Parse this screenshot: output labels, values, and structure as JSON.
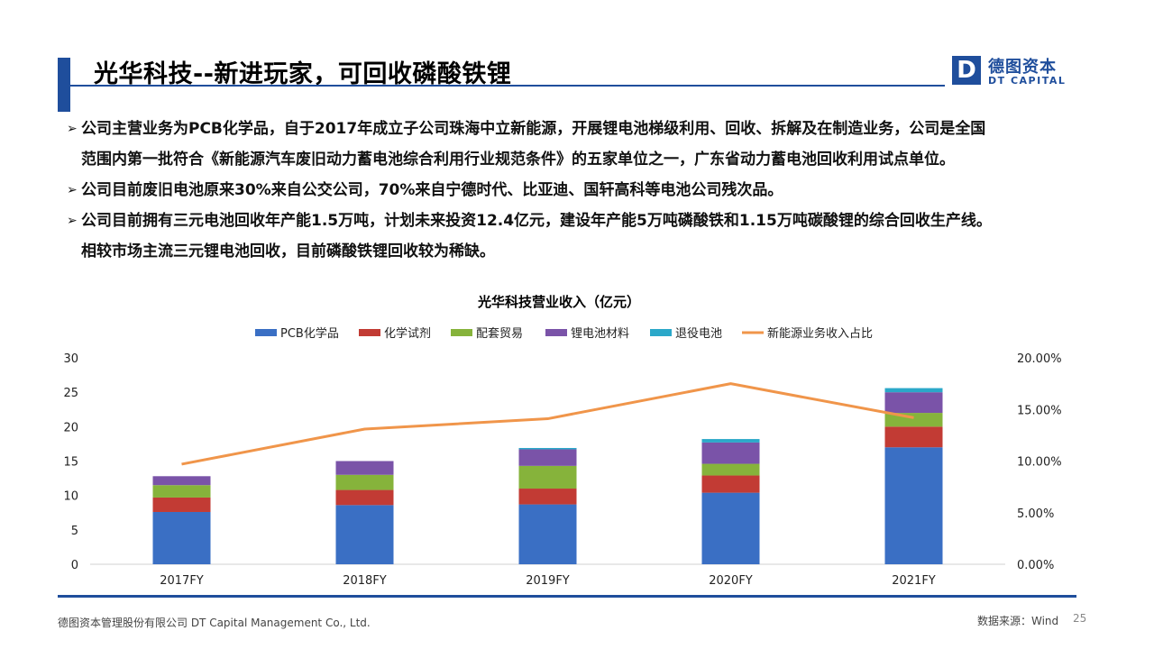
{
  "header": {
    "title": "光华科技--新进玩家，可回收磷酸铁锂",
    "logo_mark": "D",
    "logo_cn": "德图资本",
    "logo_en": "DT CAPITAL"
  },
  "bullets": [
    {
      "marker": "➢",
      "lines": [
        "公司主营业务为PCB化学品，自于2017年成立子公司珠海中立新能源，开展锂电池梯级利用、回收、拆解及在制造业务，公司是全国",
        "范围内第一批符合《新能源汽车废旧动力蓄电池综合利用行业规范条件》的五家单位之一，广东省动力蓄电池回收利用试点单位。"
      ]
    },
    {
      "marker": "➢",
      "lines": [
        "公司目前废旧电池原来30%来自公交公司，70%来自宁德时代、比亚迪、国轩高科等电池公司残次品。"
      ]
    },
    {
      "marker": "➢",
      "lines": [
        "公司目前拥有三元电池回收年产能1.5万吨，计划未来投资12.4亿元，建设年产能5万吨磷酸铁和1.15万吨碳酸锂的综合回收生产线。",
        "相较市场主流三元锂电池回收，目前磷酸铁锂回收较为稀缺。"
      ]
    }
  ],
  "chart_data": {
    "type": "bar",
    "title": "光华科技营业收入（亿元）",
    "categories": [
      "2017FY",
      "2018FY",
      "2019FY",
      "2020FY",
      "2021FY"
    ],
    "series": [
      {
        "name": "PCB化学品",
        "kind": "bar",
        "color": "#3a6fc4",
        "values": [
          7.6,
          8.6,
          8.7,
          10.4,
          17.0
        ]
      },
      {
        "name": "化学试剂",
        "kind": "bar",
        "color": "#c23b34",
        "values": [
          2.1,
          2.2,
          2.3,
          2.5,
          3.0
        ]
      },
      {
        "name": "配套贸易",
        "kind": "bar",
        "color": "#86b33b",
        "values": [
          1.8,
          2.2,
          3.3,
          1.7,
          2.0
        ]
      },
      {
        "name": "锂电池材料",
        "kind": "bar",
        "color": "#7a53a8",
        "values": [
          1.3,
          2.0,
          2.4,
          3.1,
          3.0
        ]
      },
      {
        "name": "退役电池",
        "kind": "bar",
        "color": "#2ba8c9",
        "values": [
          0.0,
          0.0,
          0.2,
          0.5,
          0.6
        ]
      },
      {
        "name": "新能源业务收入占比",
        "kind": "line",
        "axis": "right",
        "color": "#f0954a",
        "values": [
          0.097,
          0.131,
          0.141,
          0.175,
          0.142
        ]
      }
    ],
    "left_axis": {
      "min": 0,
      "max": 30,
      "ticks": [
        "0",
        "5",
        "10",
        "15",
        "20",
        "25",
        "30"
      ]
    },
    "right_axis": {
      "min": 0,
      "max": 0.2,
      "ticks": [
        "0.00%",
        "5.00%",
        "10.00%",
        "15.00%",
        "20.00%"
      ]
    },
    "grid": false,
    "legend_position": "top"
  },
  "footer": {
    "company": "德图资本管理股份有限公司  DT Capital  Management  Co., Ltd.",
    "source": "数据来源：Wind",
    "page_number": "25"
  }
}
